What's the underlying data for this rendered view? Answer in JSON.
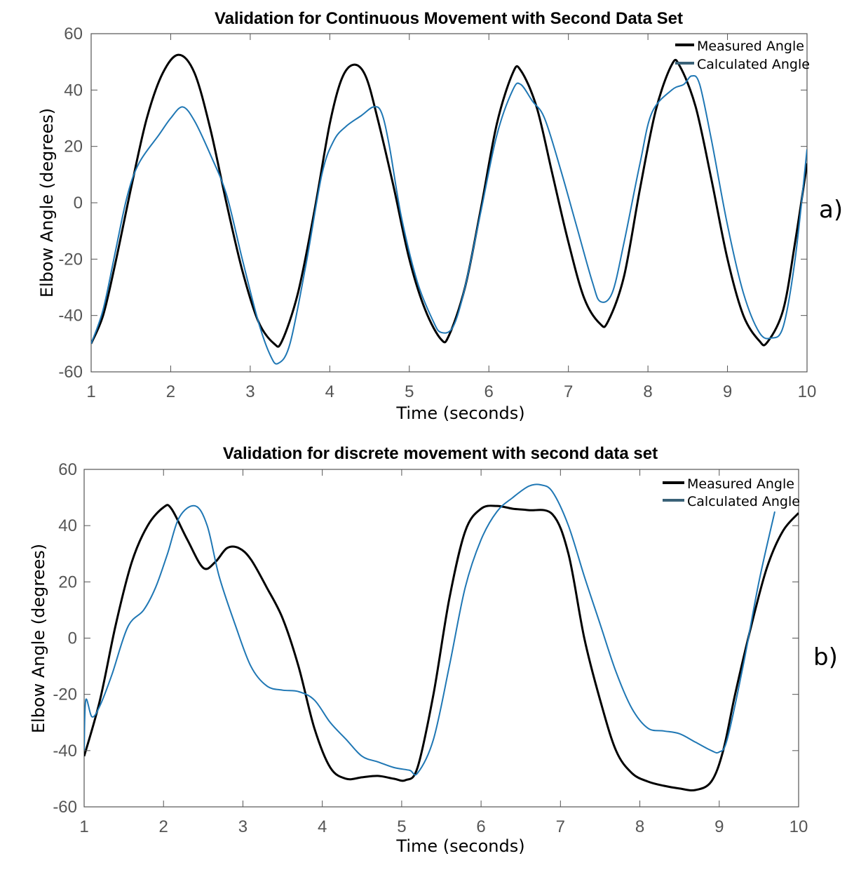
{
  "colors": {
    "measured": "#000000",
    "calculated": "#1f77b4",
    "axis": "#555555",
    "legend_calc_swatch": "#3a6278"
  },
  "chart_data": [
    {
      "type": "line",
      "panel_label": "a)",
      "title": "Validation for Continuous Movement with Second Data Set",
      "xlabel": "Time (seconds)",
      "ylabel": "Elbow Angle (degrees)",
      "xlim": [
        1,
        10
      ],
      "ylim": [
        -60,
        60
      ],
      "xticks": [
        1,
        2,
        3,
        4,
        5,
        6,
        7,
        8,
        9,
        10
      ],
      "yticks": [
        -60,
        -40,
        -20,
        0,
        20,
        40,
        60
      ],
      "grid": false,
      "legend_position": "top-right",
      "series": [
        {
          "name": "Measured Angle",
          "x": [
            1,
            1.15,
            1.3,
            1.5,
            1.7,
            1.9,
            2.1,
            2.3,
            2.5,
            2.7,
            2.9,
            3.1,
            3.3,
            3.4,
            3.6,
            3.8,
            4.0,
            4.15,
            4.3,
            4.45,
            4.6,
            4.8,
            5.0,
            5.2,
            5.4,
            5.5,
            5.7,
            5.9,
            6.1,
            6.3,
            6.4,
            6.6,
            6.8,
            7.0,
            7.2,
            7.4,
            7.5,
            7.7,
            7.9,
            8.1,
            8.3,
            8.4,
            8.6,
            8.8,
            9.0,
            9.2,
            9.4,
            9.5,
            9.7,
            9.85,
            10
          ],
          "y": [
            -50,
            -40,
            -22,
            5,
            30,
            46,
            52.5,
            46,
            26,
            0,
            -24,
            -42,
            -50,
            -49,
            -32,
            -4,
            28,
            44,
            49,
            45,
            30,
            6,
            -20,
            -38,
            -48.5,
            -47,
            -30,
            -2,
            28,
            46,
            47,
            34,
            10,
            -14,
            -34,
            -43,
            -42,
            -26,
            5,
            33,
            49,
            48.5,
            34,
            8,
            -20,
            -40,
            -49,
            -49.5,
            -38,
            -14,
            14
          ]
        },
        {
          "name": "Calculated Angle",
          "x": [
            1,
            1.15,
            1.3,
            1.45,
            1.6,
            1.85,
            2.0,
            2.15,
            2.3,
            2.5,
            2.7,
            2.9,
            3.1,
            3.25,
            3.35,
            3.5,
            3.7,
            3.9,
            4.05,
            4.2,
            4.4,
            4.55,
            4.65,
            4.75,
            4.9,
            5.1,
            5.3,
            5.4,
            5.55,
            5.7,
            5.9,
            6.1,
            6.3,
            6.4,
            6.55,
            6.7,
            6.9,
            7.1,
            7.3,
            7.4,
            7.55,
            7.7,
            7.9,
            8.05,
            8.3,
            8.45,
            8.55,
            8.65,
            8.8,
            9.0,
            9.2,
            9.4,
            9.55,
            9.7,
            9.85,
            10
          ],
          "y": [
            -50,
            -38,
            -18,
            2,
            14,
            24,
            30,
            34,
            29,
            17,
            3,
            -20,
            -42,
            -54,
            -57,
            -50,
            -22,
            10,
            22,
            27,
            31,
            34,
            32,
            20,
            -5,
            -28,
            -42,
            -46,
            -44,
            -30,
            -3,
            24,
            40,
            42,
            36,
            30,
            12,
            -8,
            -28,
            -35,
            -32,
            -14,
            14,
            32,
            40,
            42,
            45,
            42,
            22,
            -8,
            -32,
            -46,
            -48,
            -44,
            -20,
            19
          ]
        }
      ]
    },
    {
      "type": "line",
      "panel_label": "b)",
      "title": "Validation for discrete movement with second data set",
      "xlabel": "Time (seconds)",
      "ylabel": "Elbow Angle (degrees)",
      "xlim": [
        1,
        10
      ],
      "ylim": [
        -60,
        60
      ],
      "xticks": [
        1,
        2,
        3,
        4,
        5,
        6,
        7,
        8,
        9,
        10
      ],
      "yticks": [
        -60,
        -40,
        -20,
        0,
        20,
        40,
        60
      ],
      "grid": false,
      "legend_position": "top-right",
      "series": [
        {
          "name": "Measured Angle",
          "x": [
            1,
            1.2,
            1.4,
            1.6,
            1.8,
            2.0,
            2.1,
            2.3,
            2.5,
            2.65,
            2.8,
            2.95,
            3.1,
            3.3,
            3.5,
            3.7,
            3.9,
            4.1,
            4.3,
            4.5,
            4.7,
            4.9,
            5.05,
            5.2,
            5.4,
            5.6,
            5.8,
            6.0,
            6.2,
            6.4,
            6.6,
            6.9,
            7.1,
            7.3,
            7.5,
            7.7,
            7.9,
            8.1,
            8.3,
            8.5,
            8.7,
            8.9,
            9.05,
            9.2,
            9.4,
            9.6,
            9.8,
            10
          ],
          "y": [
            -42,
            -22,
            5,
            27,
            40,
            46.5,
            46,
            35,
            25,
            27,
            32,
            32,
            28,
            18,
            7,
            -10,
            -32,
            -46,
            -50,
            -49.5,
            -49,
            -50,
            -50.5,
            -46,
            -20,
            14,
            38,
            46,
            47,
            46,
            45.5,
            44,
            30,
            0,
            -22,
            -40,
            -48,
            -51,
            -52.5,
            -53.5,
            -54,
            -51,
            -40,
            -20,
            4,
            25,
            38,
            44.5
          ]
        },
        {
          "name": "Calculated Angle",
          "x": [
            1,
            1.02,
            1.1,
            1.2,
            1.35,
            1.55,
            1.75,
            1.9,
            2.05,
            2.2,
            2.4,
            2.55,
            2.7,
            2.9,
            3.1,
            3.3,
            3.5,
            3.7,
            3.9,
            4.1,
            4.3,
            4.5,
            4.7,
            4.9,
            5.1,
            5.2,
            5.4,
            5.6,
            5.8,
            6.0,
            6.2,
            6.4,
            6.6,
            6.75,
            6.9,
            7.1,
            7.3,
            7.5,
            7.7,
            7.9,
            8.1,
            8.3,
            8.5,
            8.7,
            8.9,
            9.0,
            9.1,
            9.3,
            9.5,
            9.7
          ],
          "y": [
            -40,
            -22,
            -28,
            -24,
            -13,
            4,
            10,
            18,
            30,
            43,
            47,
            40,
            22,
            5,
            -10,
            -17,
            -18.5,
            -19,
            -22,
            -30,
            -36,
            -42,
            -44,
            -46,
            -47,
            -48,
            -36,
            -10,
            18,
            35,
            45,
            50,
            54,
            54.5,
            52,
            40,
            22,
            5,
            -12,
            -25,
            -32,
            -33,
            -34,
            -37,
            -40,
            -40.5,
            -36,
            -10,
            20,
            45
          ]
        }
      ]
    }
  ]
}
